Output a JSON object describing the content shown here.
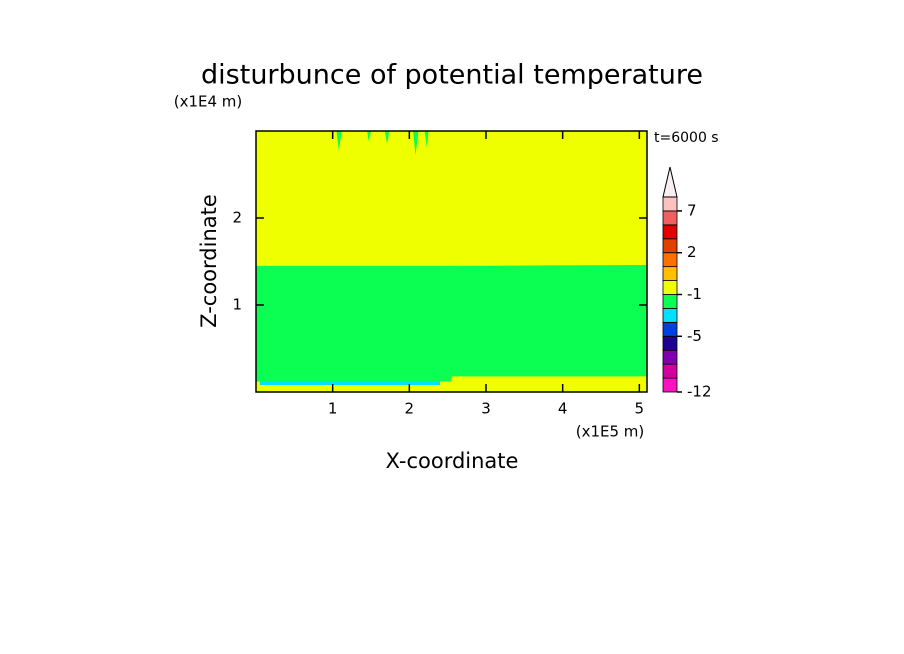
{
  "chart_data": {
    "type": "contour",
    "title": "disturbunce of potential temperature",
    "x_label": "X-coordinate",
    "y_label": "Z-coordinate",
    "x_unit": "(x1E5 m)",
    "y_unit": "(x1E4 m)",
    "time_label": "t=6000 s",
    "xlim": [
      0,
      5.1
    ],
    "ylim": [
      0,
      3
    ],
    "xticks": [
      1,
      2,
      3,
      4,
      5
    ],
    "yticks": [
      1,
      2
    ],
    "regions": [
      {
        "color": "#f0ff00",
        "x": [
          0,
          5.1,
          5.1,
          0
        ],
        "y": [
          0,
          0,
          3,
          3
        ]
      },
      {
        "color": "#0aff52",
        "x": [
          0,
          5.1,
          5.1,
          2.55,
          2.5,
          0
        ],
        "y": [
          0.12,
          0.12,
          1.46,
          1.45,
          1.45,
          1.45
        ]
      },
      {
        "color": "#f0ff00",
        "x": [
          2.55,
          5.1,
          5.1,
          2.55
        ],
        "y": [
          0.02,
          0.02,
          0.18,
          0.18
        ]
      },
      {
        "color": "#00e0ff",
        "x": [
          0.05,
          2.4,
          2.4,
          0.05
        ],
        "y": [
          0.08,
          0.08,
          0.12,
          0.12
        ]
      },
      {
        "color": "#0aff52",
        "x": [
          1.05,
          1.12,
          1.08
        ],
        "y": [
          3,
          3,
          2.78
        ]
      },
      {
        "color": "#0aff52",
        "x": [
          1.45,
          1.5,
          1.47
        ],
        "y": [
          3,
          3,
          2.88
        ]
      },
      {
        "color": "#0aff52",
        "x": [
          1.68,
          1.74,
          1.71
        ],
        "y": [
          3,
          3,
          2.85
        ]
      },
      {
        "color": "#0aff52",
        "x": [
          2.05,
          2.12,
          2.08
        ],
        "y": [
          3,
          3,
          2.72
        ]
      },
      {
        "color": "#0aff52",
        "x": [
          2.2,
          2.25,
          2.23
        ],
        "y": [
          3,
          3,
          2.8
        ]
      }
    ],
    "colorbar": {
      "levels": [
        -12,
        -10,
        -8,
        -6,
        -5,
        -3,
        -2,
        -1,
        0,
        1,
        2,
        3,
        5,
        7,
        9
      ],
      "colors": [
        "#ff10c0",
        "#d000a0",
        "#8000b0",
        "#200090",
        "#0040e0",
        "#00e0ff",
        "#0aff52",
        "#f0ff00",
        "#ffc000",
        "#ff7000",
        "#e04000",
        "#e00000",
        "#f06060",
        "#ffc0c0"
      ],
      "extend_color": "#f8f0f0",
      "ticks": [
        -12,
        -5,
        -1,
        2,
        7
      ]
    }
  }
}
